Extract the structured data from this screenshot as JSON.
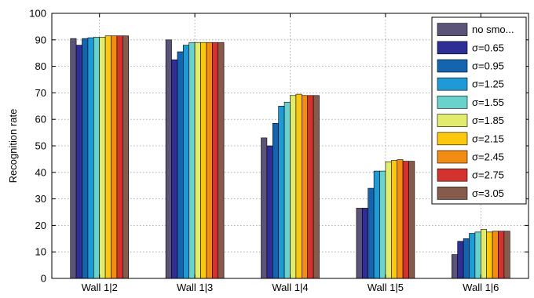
{
  "chart_data": {
    "type": "bar",
    "title": "",
    "xlabel": "",
    "ylabel": "Recognition rate",
    "ylim": [
      0,
      100
    ],
    "yticks": [
      0,
      10,
      20,
      30,
      40,
      50,
      60,
      70,
      80,
      90,
      100
    ],
    "grid": true,
    "legend_position": "top-right",
    "categories": [
      "Wall 1|2",
      "Wall 1|3",
      "Wall 1|4",
      "Wall 1|5",
      "Wall 1|6"
    ],
    "series": [
      {
        "name": "no smo...",
        "color": "#5b5378",
        "values": [
          90.5,
          90.0,
          53.0,
          26.5,
          9.0
        ]
      },
      {
        "name": "σ=0.65",
        "color": "#2e2e96",
        "values": [
          88.0,
          82.5,
          50.0,
          26.5,
          14.0
        ]
      },
      {
        "name": "σ=0.95",
        "color": "#1564b0",
        "values": [
          90.5,
          85.5,
          58.5,
          34.0,
          15.0
        ]
      },
      {
        "name": "σ=1.25",
        "color": "#1e9ad6",
        "values": [
          90.8,
          88.0,
          65.0,
          40.5,
          17.0
        ]
      },
      {
        "name": "σ=1.55",
        "color": "#69d2cd",
        "values": [
          91.0,
          89.0,
          66.5,
          40.5,
          17.5
        ]
      },
      {
        "name": "σ=1.85",
        "color": "#e1ec6e",
        "values": [
          91.0,
          89.0,
          69.0,
          44.0,
          18.5
        ]
      },
      {
        "name": "σ=2.15",
        "color": "#fcc80f",
        "values": [
          91.5,
          89.0,
          69.5,
          44.5,
          17.5
        ]
      },
      {
        "name": "σ=2.45",
        "color": "#f18d14",
        "values": [
          91.5,
          89.0,
          69.0,
          44.8,
          17.8
        ]
      },
      {
        "name": "σ=2.75",
        "color": "#d4322d",
        "values": [
          91.5,
          89.0,
          69.0,
          44.2,
          17.8
        ]
      },
      {
        "name": "σ=3.05",
        "color": "#875b4b",
        "values": [
          91.5,
          89.0,
          69.0,
          44.2,
          17.8
        ]
      }
    ]
  }
}
